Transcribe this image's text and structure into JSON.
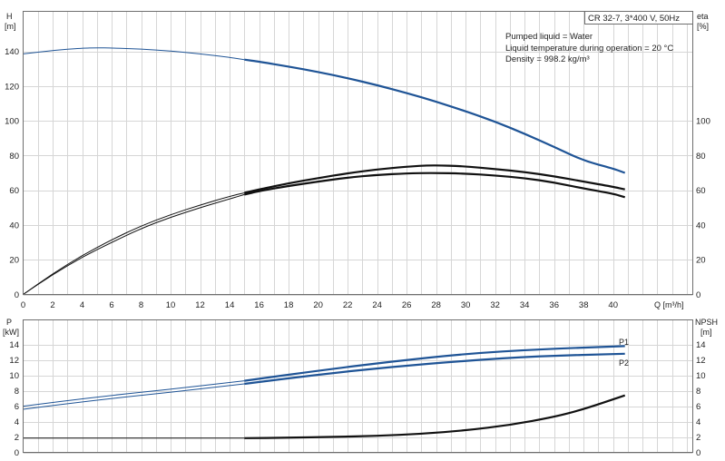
{
  "chart_data": [
    {
      "type": "line",
      "title": "CR 32-7, 3*400 V, 50Hz",
      "info_lines": [
        "Pumped liquid = Water",
        "Liquid temperature during operation = 20 °C",
        "Density = 998.2 kg/m³"
      ],
      "xlabel": "Q [m³/h]",
      "ylabel_left": [
        "H",
        "[m]"
      ],
      "ylabel_right": [
        "eta",
        "[%]"
      ],
      "xlim": [
        0,
        45.4
      ],
      "ylim_left": [
        0,
        163
      ],
      "ylim_right": [
        0,
        163
      ],
      "xticks": [
        "0",
        "2",
        "4",
        "6",
        "8",
        "10",
        "12",
        "14",
        "16",
        "18",
        "20",
        "22",
        "24",
        "26",
        "28",
        "30",
        "32",
        "34",
        "36",
        "38",
        "40"
      ],
      "yticks_left": [
        "0",
        "20",
        "40",
        "60",
        "80",
        "100",
        "120",
        "140"
      ],
      "yticks_right": [
        "0",
        "20",
        "40",
        "60",
        "80",
        "100"
      ],
      "grid": true,
      "series": [
        {
          "axis": "left",
          "color": "#1f5496",
          "x": [
            0,
            2,
            4,
            5,
            6,
            8,
            10,
            12,
            14,
            15,
            16,
            18,
            20,
            22,
            24,
            26,
            28,
            30,
            32,
            34,
            36,
            38,
            40,
            40.8
          ],
          "y": [
            138.5,
            140.5,
            141.8,
            142,
            141.9,
            141.3,
            140.2,
            138.5,
            136.5,
            135.2,
            134,
            131.2,
            128.1,
            124.5,
            120.5,
            116,
            111,
            105.5,
            99.5,
            92.5,
            85,
            77,
            72.5,
            70
          ],
          "highlight_from": 15
        },
        {
          "axis": "right",
          "color": "#111111",
          "x": [
            0,
            2,
            4,
            6,
            8,
            10,
            12,
            14,
            15,
            16,
            18,
            20,
            22,
            24,
            26,
            27.7,
            30,
            32,
            34,
            36,
            38,
            40,
            40.8
          ],
          "y": [
            0,
            12,
            22.5,
            31.5,
            39.5,
            46,
            51.5,
            56.5,
            58.5,
            60.5,
            64,
            67,
            69.8,
            72,
            73.6,
            74.5,
            73.8,
            72.2,
            70.5,
            68,
            65,
            62,
            60.5
          ],
          "highlight_from": 15
        },
        {
          "axis": "right",
          "color": "#111111",
          "x": [
            0,
            2,
            4,
            6,
            8,
            10,
            12,
            14,
            15,
            16,
            18,
            20,
            22,
            24,
            26,
            27.7,
            30,
            32,
            34,
            36,
            38,
            40,
            40.8
          ],
          "y": [
            0,
            11.5,
            21.5,
            30,
            38,
            44.5,
            50,
            55,
            57.5,
            59.5,
            62.5,
            65,
            67.3,
            68.8,
            69.7,
            70,
            69.6,
            68.5,
            67,
            64.5,
            61,
            58,
            56
          ],
          "highlight_from": 15
        }
      ]
    },
    {
      "type": "line",
      "xlim": [
        0,
        45.4
      ],
      "ylim_left": [
        0,
        17.2
      ],
      "ylim_right": [
        0,
        17.2
      ],
      "ylabel_left": [
        "P",
        "[kW]"
      ],
      "ylabel_right": [
        "NPSH",
        "[m]"
      ],
      "yticks_left": [
        "0",
        "2",
        "4",
        "6",
        "8",
        "10",
        "12",
        "14"
      ],
      "yticks_right": [
        "0",
        "2",
        "4",
        "6",
        "8",
        "10",
        "12",
        "14"
      ],
      "grid": true,
      "series": [
        {
          "name": "P1",
          "axis": "left",
          "color": "#1f5496",
          "x": [
            0,
            5,
            10,
            15,
            20,
            25,
            30,
            35,
            40.8
          ],
          "y": [
            6,
            7.2,
            8.2,
            9.3,
            10.6,
            11.8,
            12.8,
            13.4,
            13.8
          ],
          "highlight_from": 15
        },
        {
          "name": "P2",
          "axis": "left",
          "color": "#1f5496",
          "x": [
            0,
            5,
            10,
            15,
            20,
            25,
            30,
            35,
            40.8
          ],
          "y": [
            5.6,
            6.8,
            7.8,
            8.9,
            10.1,
            11.1,
            11.9,
            12.5,
            12.8
          ],
          "highlight_from": 15
        },
        {
          "axis": "right",
          "color": "#111111",
          "x": [
            0,
            5,
            10,
            15,
            18,
            21,
            24,
            27,
            30,
            33,
            36,
            38,
            40.8
          ],
          "y": [
            1.85,
            1.85,
            1.85,
            1.85,
            1.9,
            2.0,
            2.15,
            2.4,
            2.85,
            3.55,
            4.6,
            5.6,
            7.4
          ],
          "highlight_from": 15
        }
      ]
    }
  ]
}
